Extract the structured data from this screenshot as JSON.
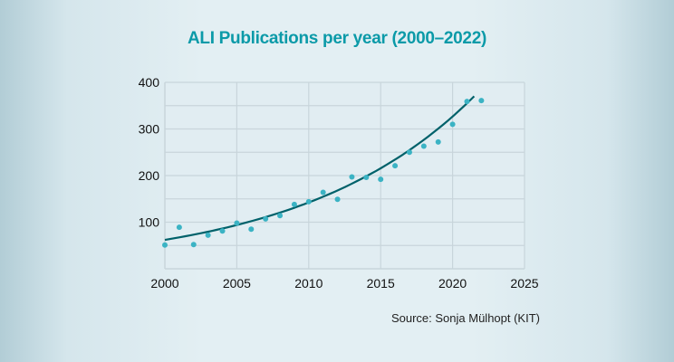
{
  "chart_data": {
    "type": "scatter",
    "title": "ALI Publications per year (2000–2022)",
    "source": "Source: Sonja Mülhopt (KIT)",
    "xlabel": "",
    "ylabel": "",
    "xlim": [
      2000,
      2025
    ],
    "ylim": [
      0,
      400
    ],
    "xticks": [
      2000,
      2005,
      2010,
      2015,
      2020,
      2025
    ],
    "yticks": [
      100,
      200,
      300,
      400
    ],
    "grid": true,
    "x": [
      2000,
      2001,
      2002,
      2003,
      2004,
      2005,
      2006,
      2007,
      2008,
      2009,
      2010,
      2011,
      2012,
      2013,
      2014,
      2015,
      2016,
      2017,
      2018,
      2019,
      2020,
      2021,
      2022
    ],
    "y": [
      51,
      89,
      52,
      72,
      81,
      98,
      85,
      107,
      114,
      138,
      144,
      164,
      149,
      197,
      196,
      192,
      221,
      250,
      263,
      272,
      310,
      359,
      361
    ],
    "trendline": {
      "type": "exponential",
      "a": 62,
      "b": 0.0831,
      "x_start": 2000,
      "x_end": 2021.5
    },
    "colors": {
      "points": "#3bb3c4",
      "trendline": "#00616a",
      "title": "#0b9aa8",
      "plot_bg": "#e1edf2",
      "grid": "#c8d5db"
    }
  }
}
